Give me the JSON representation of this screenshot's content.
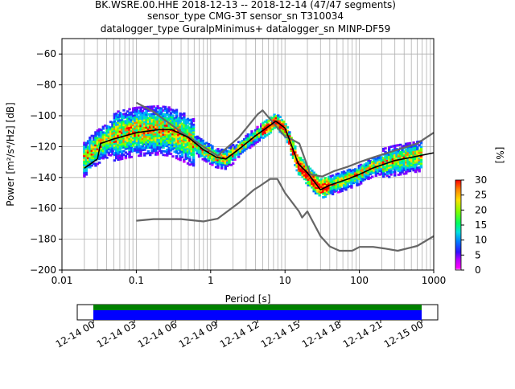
{
  "title_lines": [
    "BK.WSRE.00.HHE   2018-12-13 -- 2018-12-14  (47/47 segments)",
    "sensor_type CMG-3T sensor_sn T310034",
    "datalogger_type GuralpMinimus+ datalogger_sn MINP-DF59"
  ],
  "chart_data": [
    {
      "type": "heatmap",
      "xlabel": "Period [s]",
      "ylabel": "Power [m²/s⁴/Hz] [dB]",
      "xscale": "log",
      "xlim": [
        0.01,
        1000
      ],
      "ylim": [
        -200,
        -50
      ],
      "x_ticks": [
        {
          "v": 0.01,
          "label": "0.01"
        },
        {
          "v": 0.1,
          "label": "0.1"
        },
        {
          "v": 1,
          "label": "1"
        },
        {
          "v": 10,
          "label": "10"
        },
        {
          "v": 100,
          "label": "100"
        },
        {
          "v": 1000,
          "label": "1000"
        }
      ],
      "y_ticks": [
        {
          "v": -60,
          "label": "−60"
        },
        {
          "v": -80,
          "label": "−80"
        },
        {
          "v": -100,
          "label": "−100"
        },
        {
          "v": -120,
          "label": "−120"
        },
        {
          "v": -140,
          "label": "−140"
        },
        {
          "v": -160,
          "label": "−160"
        },
        {
          "v": -180,
          "label": "−180"
        },
        {
          "v": -200,
          "label": "−200"
        }
      ],
      "grid": true,
      "colorbar": {
        "label": "[%]",
        "range": [
          0,
          30
        ],
        "ticks": [
          {
            "v": 0,
            "label": "0"
          },
          {
            "v": 5,
            "label": "5"
          },
          {
            "v": 10,
            "label": "10"
          },
          {
            "v": 15,
            "label": "15"
          },
          {
            "v": 20,
            "label": "20"
          },
          {
            "v": 25,
            "label": "25"
          },
          {
            "v": 30,
            "label": "30"
          }
        ]
      },
      "series": [
        {
          "role": "nhnm",
          "color": "#666666",
          "points": [
            [
              0.1,
              -91.5
            ],
            [
              0.17,
              -97.4
            ],
            [
              0.4,
              -110.5
            ],
            [
              0.8,
              -120
            ],
            [
              1.24,
              -126
            ],
            [
              2.4,
              -114
            ],
            [
              4.3,
              -99
            ],
            [
              5,
              -96.5
            ],
            [
              6,
              -101
            ],
            [
              10,
              -113.5
            ],
            [
              12,
              -115
            ],
            [
              15.6,
              -118
            ],
            [
              21.9,
              -138
            ],
            [
              31.6,
              -139.4
            ],
            [
              45,
              -136
            ],
            [
              70,
              -133
            ],
            [
              101,
              -130
            ],
            [
              154,
              -127
            ],
            [
              328,
              -122
            ],
            [
              600,
              -118
            ],
            [
              1000,
              -111
            ]
          ]
        },
        {
          "role": "nlnm",
          "color": "#666666",
          "points": [
            [
              0.1,
              -168
            ],
            [
              0.17,
              -167
            ],
            [
              0.4,
              -167
            ],
            [
              0.8,
              -168.5
            ],
            [
              1.24,
              -166.7
            ],
            [
              2.4,
              -156.4
            ],
            [
              3.8,
              -148
            ],
            [
              4.6,
              -145.5
            ],
            [
              6.3,
              -141
            ],
            [
              7.9,
              -141
            ],
            [
              10,
              -150
            ],
            [
              15.4,
              -162
            ],
            [
              17,
              -166
            ],
            [
              20,
              -162
            ],
            [
              30,
              -178
            ],
            [
              40,
              -184.7
            ],
            [
              54,
              -187.5
            ],
            [
              80,
              -187.5
            ],
            [
              101,
              -185
            ],
            [
              153,
              -185
            ],
            [
              215,
              -186
            ],
            [
              328,
              -187.5
            ],
            [
              600,
              -184.4
            ],
            [
              1000,
              -178
            ]
          ]
        },
        {
          "role": "mean",
          "color": "#000000",
          "points": [
            [
              0.02,
              -134
            ],
            [
              0.03,
              -128
            ],
            [
              0.033,
              -118
            ],
            [
              0.05,
              -115
            ],
            [
              0.1,
              -111
            ],
            [
              0.2,
              -109
            ],
            [
              0.3,
              -109
            ],
            [
              0.5,
              -114
            ],
            [
              0.8,
              -122
            ],
            [
              1.2,
              -127
            ],
            [
              1.6,
              -128
            ],
            [
              2.5,
              -121
            ],
            [
              4,
              -113
            ],
            [
              6,
              -107
            ],
            [
              7.5,
              -103.5
            ],
            [
              10,
              -108
            ],
            [
              12,
              -118
            ],
            [
              15,
              -131
            ],
            [
              20,
              -137
            ],
            [
              30,
              -148
            ],
            [
              40,
              -145
            ],
            [
              70,
              -141
            ],
            [
              100,
              -138
            ],
            [
              150,
              -134
            ],
            [
              300,
              -129
            ],
            [
              500,
              -127
            ],
            [
              1000,
              -124
            ]
          ]
        },
        {
          "role": "spread_center",
          "points": [
            [
              0.02,
              -128
            ],
            [
              0.03,
              -120
            ],
            [
              0.05,
              -113
            ],
            [
              0.1,
              -110
            ],
            [
              0.2,
              -109
            ],
            [
              0.3,
              -110
            ],
            [
              0.5,
              -115
            ],
            [
              0.8,
              -122
            ],
            [
              1.2,
              -127
            ],
            [
              1.6,
              -128
            ],
            [
              2.5,
              -121
            ],
            [
              4,
              -113
            ],
            [
              6,
              -107
            ],
            [
              7.5,
              -103.5
            ],
            [
              10,
              -108
            ],
            [
              12,
              -118
            ],
            [
              15,
              -131
            ],
            [
              20,
              -138
            ],
            [
              30,
              -147
            ],
            [
              40,
              -145
            ],
            [
              70,
              -141
            ],
            [
              100,
              -138
            ],
            [
              150,
              -133
            ],
            [
              300,
              -129
            ],
            [
              700,
              -126
            ]
          ]
        }
      ]
    },
    {
      "type": "timeline",
      "xlim_labels": [
        "12-14 00",
        "12-15 00"
      ],
      "tick_labels": [
        "12-14 00",
        "12-14 03",
        "12-14 06",
        "12-14 09",
        "12-14 12",
        "12-14 15",
        "12-14 18",
        "12-14 21",
        "12-15 00"
      ],
      "coverage": [
        0,
        1
      ],
      "bars": [
        {
          "name": "data",
          "color": "#008000"
        },
        {
          "name": "psd",
          "color": "#0000ff"
        }
      ]
    }
  ]
}
